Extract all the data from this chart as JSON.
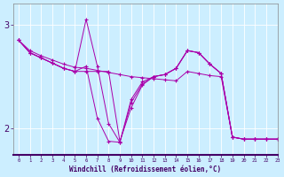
{
  "xlabel": "Windchill (Refroidissement éolien,°C)",
  "background_color": "#cceeff",
  "line_color": "#aa00aa",
  "axis_label_bg": "#6600aa",
  "x_ticks": [
    0,
    1,
    2,
    3,
    4,
    5,
    6,
    7,
    8,
    9,
    10,
    11,
    12,
    13,
    14,
    15,
    16,
    17,
    18,
    19,
    20,
    21,
    22,
    23
  ],
  "y_ticks": [
    2,
    3
  ],
  "ylim": [
    1.75,
    3.2
  ],
  "xlim": [
    -0.5,
    23
  ],
  "series": [
    [
      2.85,
      2.73,
      2.68,
      2.63,
      2.58,
      2.55,
      3.05,
      2.6,
      2.05,
      1.87,
      2.28,
      2.45,
      2.5,
      2.52,
      2.58,
      2.75,
      2.73,
      2.62,
      2.53,
      1.92,
      1.9,
      1.9,
      1.9,
      1.9
    ],
    [
      2.85,
      2.73,
      2.68,
      2.63,
      2.58,
      2.55,
      2.6,
      2.1,
      1.88,
      1.87,
      2.25,
      2.43,
      2.5,
      2.52,
      2.58,
      2.75,
      2.73,
      2.62,
      2.53,
      1.92,
      1.9,
      1.9,
      1.9,
      1.9
    ],
    [
      2.85,
      2.73,
      2.68,
      2.63,
      2.58,
      2.55,
      2.55,
      2.55,
      2.55,
      1.88,
      2.2,
      2.42,
      2.5,
      2.52,
      2.58,
      2.75,
      2.73,
      2.62,
      2.53,
      1.92,
      1.9,
      1.9,
      1.9,
      1.9
    ],
    [
      2.85,
      2.75,
      2.7,
      2.66,
      2.62,
      2.59,
      2.58,
      2.56,
      2.54,
      2.52,
      2.5,
      2.49,
      2.48,
      2.47,
      2.46,
      2.55,
      2.53,
      2.51,
      2.5,
      1.92,
      1.9,
      1.9,
      1.9,
      1.9
    ]
  ]
}
